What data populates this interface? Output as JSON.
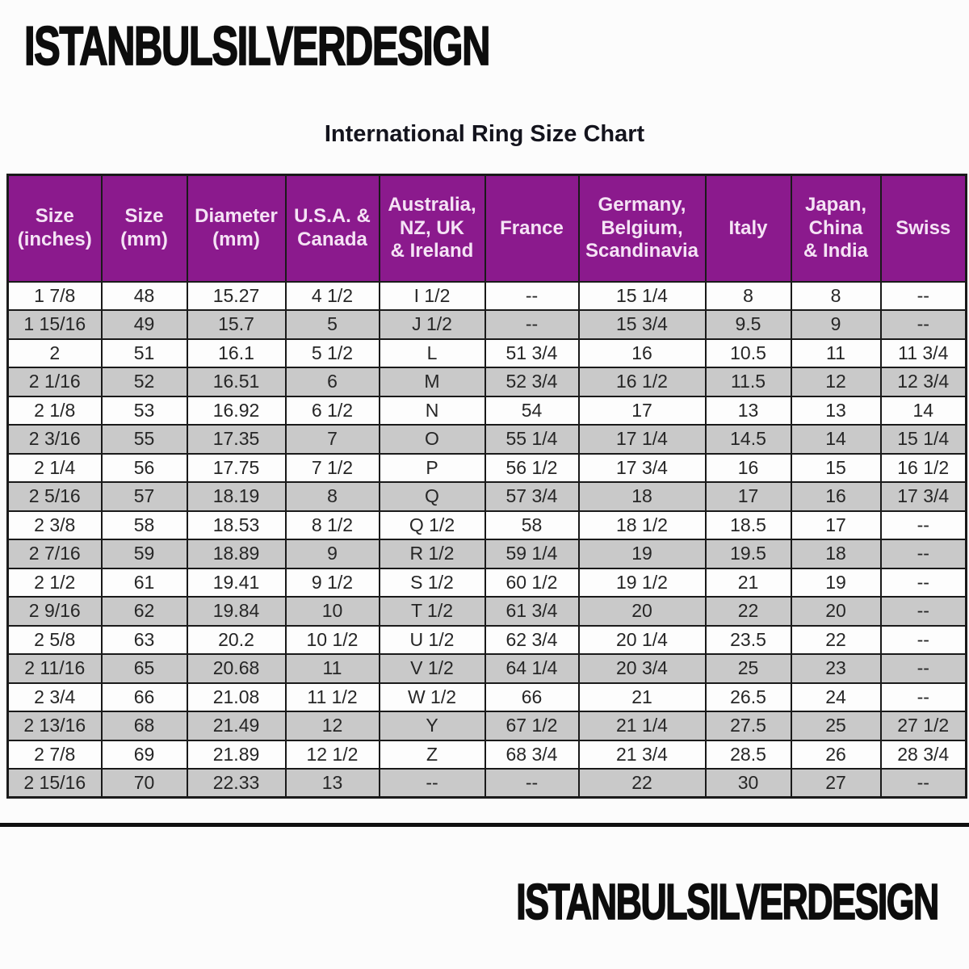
{
  "page": {
    "top_logo": "ISTANBULSILVERDESIGN",
    "bottom_logo": "ISTANBULSILVERDESIGN"
  },
  "colors": {
    "header_bg": "#8B1A8D",
    "header_text": "#F5E3F5",
    "row_alt_bg": "#C9C9C9",
    "row_bg": "#FDFDFD",
    "border": "#1A1A1A",
    "body_text": "#262626",
    "title_text": "#14141D"
  },
  "chart_data": {
    "type": "table",
    "title": "International Ring Size Chart",
    "legend_position": "none",
    "grid": true,
    "columns": [
      "Size\n(inches)",
      "Size\n(mm)",
      "Diameter\n(mm)",
      "U.S.A. &\nCanada",
      "Australia,\nNZ, UK\n& Ireland",
      "France",
      "Germany,\nBelgium,\nScandinavia",
      "Italy",
      "Japan,\nChina\n& India",
      "Swiss"
    ],
    "rows": [
      [
        "1 7/8",
        "48",
        "15.27",
        "4 1/2",
        "I 1/2",
        "--",
        "15 1/4",
        "8",
        "8",
        "--"
      ],
      [
        "1 15/16",
        "49",
        "15.7",
        "5",
        "J 1/2",
        "--",
        "15 3/4",
        "9.5",
        "9",
        "--"
      ],
      [
        "2",
        "51",
        "16.1",
        "5 1/2",
        "L",
        "51 3/4",
        "16",
        "10.5",
        "11",
        "11 3/4"
      ],
      [
        "2 1/16",
        "52",
        "16.51",
        "6",
        "M",
        "52 3/4",
        "16 1/2",
        "11.5",
        "12",
        "12 3/4"
      ],
      [
        "2 1/8",
        "53",
        "16.92",
        "6 1/2",
        "N",
        "54",
        "17",
        "13",
        "13",
        "14"
      ],
      [
        "2 3/16",
        "55",
        "17.35",
        "7",
        "O",
        "55 1/4",
        "17 1/4",
        "14.5",
        "14",
        "15 1/4"
      ],
      [
        "2 1/4",
        "56",
        "17.75",
        "7 1/2",
        "P",
        "56 1/2",
        "17 3/4",
        "16",
        "15",
        "16 1/2"
      ],
      [
        "2 5/16",
        "57",
        "18.19",
        "8",
        "Q",
        "57 3/4",
        "18",
        "17",
        "16",
        "17 3/4"
      ],
      [
        "2 3/8",
        "58",
        "18.53",
        "8 1/2",
        "Q 1/2",
        "58",
        "18 1/2",
        "18.5",
        "17",
        "--"
      ],
      [
        "2 7/16",
        "59",
        "18.89",
        "9",
        "R 1/2",
        "59 1/4",
        "19",
        "19.5",
        "18",
        "--"
      ],
      [
        "2 1/2",
        "61",
        "19.41",
        "9 1/2",
        "S 1/2",
        "60 1/2",
        "19 1/2",
        "21",
        "19",
        "--"
      ],
      [
        "2 9/16",
        "62",
        "19.84",
        "10",
        "T 1/2",
        "61 3/4",
        "20",
        "22",
        "20",
        "--"
      ],
      [
        "2 5/8",
        "63",
        "20.2",
        "10 1/2",
        "U 1/2",
        "62 3/4",
        "20 1/4",
        "23.5",
        "22",
        "--"
      ],
      [
        "2 11/16",
        "65",
        "20.68",
        "11",
        "V 1/2",
        "64 1/4",
        "20 3/4",
        "25",
        "23",
        "--"
      ],
      [
        "2 3/4",
        "66",
        "21.08",
        "11 1/2",
        "W 1/2",
        "66",
        "21",
        "26.5",
        "24",
        "--"
      ],
      [
        "2 13/16",
        "68",
        "21.49",
        "12",
        "Y",
        "67 1/2",
        "21 1/4",
        "27.5",
        "25",
        "27 1/2"
      ],
      [
        "2 7/8",
        "69",
        "21.89",
        "12 1/2",
        "Z",
        "68 3/4",
        "21 3/4",
        "28.5",
        "26",
        "28 3/4"
      ],
      [
        "2 15/16",
        "70",
        "22.33",
        "13",
        "--",
        "--",
        "22",
        "30",
        "27",
        "--"
      ]
    ]
  }
}
